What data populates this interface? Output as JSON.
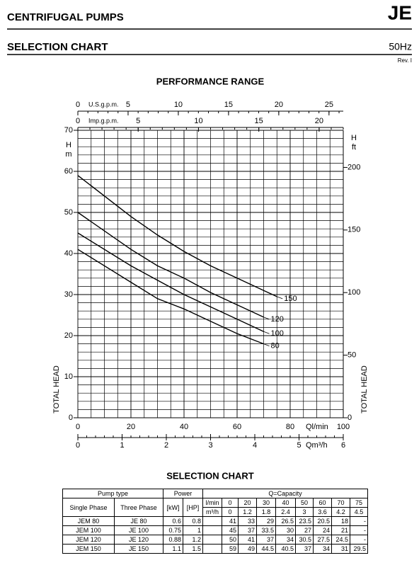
{
  "header": {
    "title": "CENTRIFUGAL PUMPS",
    "code": "JE",
    "subtitle": "SELECTION CHART",
    "frequency": "50Hz",
    "revision": "Rev. I"
  },
  "chart_data": {
    "type": "line",
    "title": "PERFORMANCE RANGE",
    "x": [
      0,
      20,
      30,
      40,
      50,
      60,
      70,
      75
    ],
    "series": [
      {
        "name": "150",
        "color": "#000000",
        "values": [
          59,
          49,
          44.5,
          40.5,
          37,
          34,
          31,
          29.5
        ]
      },
      {
        "name": "120",
        "color": "#000000",
        "values": [
          50,
          41,
          37,
          34,
          30.5,
          27.5,
          24.5,
          null
        ]
      },
      {
        "name": "100",
        "color": "#000000",
        "values": [
          45,
          37,
          33.5,
          30,
          27,
          24,
          21,
          null
        ]
      },
      {
        "name": "80",
        "color": "#000000",
        "values": [
          41,
          33,
          29,
          26.5,
          23.5,
          20.5,
          18,
          null
        ]
      }
    ],
    "xlabel": "Ql/min",
    "xlim": [
      0,
      100
    ],
    "xticks": [
      0,
      20,
      40,
      60,
      80,
      100
    ],
    "ylabel": "TOTAL HEAD",
    "y_symbol": "H",
    "y_unit": "m",
    "ylim": [
      0,
      70
    ],
    "yticks": [
      0,
      10,
      20,
      30,
      40,
      50,
      60,
      70
    ],
    "y2label": "TOTAL HEAD",
    "y2_symbol": "H",
    "y2_unit": "ft",
    "y2lim": [
      0,
      229.66
    ],
    "y2ticks": [
      0,
      50,
      100,
      150,
      200
    ],
    "top_axes": [
      {
        "label": "U.S.g.p.m.",
        "xlim": [
          0,
          26.42
        ],
        "xticks": [
          0,
          5,
          10,
          15,
          20,
          25
        ]
      },
      {
        "label": "Imp.g.p.m.",
        "xlim": [
          0,
          22
        ],
        "xticks": [
          0,
          5,
          10,
          15,
          20
        ]
      }
    ],
    "bottom_axis": {
      "label": "Qm³/h",
      "xlim": [
        0,
        6
      ],
      "xticks": [
        0,
        1,
        2,
        3,
        4,
        5,
        6
      ]
    },
    "grid": true
  },
  "table": {
    "title": "SELECTION CHART",
    "columns": {
      "pump_type": "Pump type",
      "power": "Power",
      "capacity": "Q=Capacity",
      "single_phase": "Single Phase",
      "three_phase": "Three Phase",
      "kw": "[kW]",
      "hp": "[HP]"
    },
    "flow_units": [
      {
        "unit": "l/min",
        "values": [
          "0",
          "20",
          "30",
          "40",
          "50",
          "60",
          "70",
          "75"
        ]
      },
      {
        "unit": "m³/h",
        "values": [
          "0",
          "1.2",
          "1.8",
          "2.4",
          "3",
          "3.6",
          "4.2",
          "4.5"
        ]
      }
    ],
    "rows": [
      [
        "JEM 80",
        "JE 80",
        "0.6",
        "0.8",
        "41",
        "33",
        "29",
        "26.5",
        "23.5",
        "20.5",
        "18",
        "-"
      ],
      [
        "JEM 100",
        "JE 100",
        "0.75",
        "1",
        "45",
        "37",
        "33.5",
        "30",
        "27",
        "24",
        "21",
        "-"
      ],
      [
        "JEM 120",
        "JE 120",
        "0.88",
        "1.2",
        "50",
        "41",
        "37",
        "34",
        "30.5",
        "27.5",
        "24.5",
        "-"
      ],
      [
        "JEM 150",
        "JE 150",
        "1.1",
        "1.5",
        "59",
        "49",
        "44.5",
        "40.5",
        "37",
        "34",
        "31",
        "29.5"
      ]
    ]
  }
}
